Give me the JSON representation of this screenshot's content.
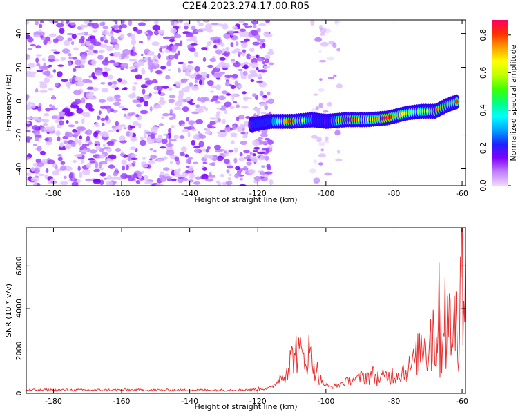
{
  "page_title": "C2E4.2023.274.17.00.R05",
  "chart_data": [
    {
      "type": "heatmap",
      "xlabel": "Height of straight line (km)",
      "ylabel": "Frequency (Hz)",
      "xlim": [
        -188,
        -59
      ],
      "ylim": [
        -50,
        48
      ],
      "x_ticks": [
        -180,
        -160,
        -140,
        -120,
        -100,
        -80,
        -60
      ],
      "y_ticks": [
        -40,
        -20,
        0,
        20,
        40
      ],
      "colorbar": {
        "label": "Normalized spectral amplitude",
        "range": [
          0,
          0.88
        ],
        "ticks": [
          "0.0",
          "0.2",
          "0.4",
          "0.6",
          "0.8"
        ],
        "colormap": [
          "#f0d8ff",
          "#c080ff",
          "#8000ff",
          "#2020ff",
          "#00a0ff",
          "#00ffff",
          "#00ff80",
          "#40ff00",
          "#c0ff00",
          "#ffff00",
          "#ffa000",
          "#ff3000",
          "#ff0060"
        ]
      },
      "regions": [
        {
          "name": "noise",
          "x_range": [
            -188,
            -116
          ],
          "y_range": [
            -50,
            48
          ],
          "amplitude": 0.05
        },
        {
          "name": "noise-column",
          "x_range": [
            -104,
            -96
          ],
          "y_range": [
            -50,
            48
          ],
          "amplitude": 0.03
        }
      ],
      "ridge": {
        "points": [
          {
            "x": -122,
            "y": -14,
            "amp": 0.3
          },
          {
            "x": -116,
            "y": -12,
            "amp": 0.4
          },
          {
            "x": -110,
            "y": -12,
            "amp": 0.85
          },
          {
            "x": -104,
            "y": -11,
            "amp": 0.45
          },
          {
            "x": -100,
            "y": -12,
            "amp": 0.3
          },
          {
            "x": -94,
            "y": -11,
            "amp": 0.85
          },
          {
            "x": -88,
            "y": -11,
            "amp": 0.6
          },
          {
            "x": -82,
            "y": -10,
            "amp": 0.85
          },
          {
            "x": -76,
            "y": -7,
            "amp": 0.6
          },
          {
            "x": -72,
            "y": -6,
            "amp": 0.55
          },
          {
            "x": -68,
            "y": -6,
            "amp": 0.8
          },
          {
            "x": -64,
            "y": -2,
            "amp": 0.7
          },
          {
            "x": -61,
            "y": 0,
            "amp": 0.8
          }
        ],
        "width_hz": 5
      }
    },
    {
      "type": "line",
      "xlabel": "Height of straight line (km)",
      "ylabel": "SNR (10 * v/v)",
      "xlim": [
        -188,
        -59
      ],
      "ylim": [
        0,
        7800
      ],
      "x_ticks": [
        -180,
        -160,
        -140,
        -120,
        -100,
        -80,
        -60
      ],
      "y_ticks": [
        0,
        2000,
        4000,
        6000
      ],
      "line_color": "#e83030",
      "series": [
        {
          "x": [
            -188,
            -180,
            -170,
            -160,
            -150,
            -140,
            -130,
            -122,
            -116,
            -113,
            -111,
            -109,
            -107,
            -105,
            -103,
            -101,
            -99,
            -97,
            -94,
            -92,
            -90,
            -88,
            -86,
            -84,
            -82,
            -80,
            -78,
            -76,
            -74,
            -72,
            -70,
            -68,
            -67,
            -66,
            -65,
            -64,
            -63,
            -62,
            -61,
            -60,
            -59
          ],
          "y": [
            150,
            160,
            150,
            160,
            150,
            150,
            150,
            180,
            250,
            800,
            1300,
            2000,
            1700,
            1900,
            1200,
            500,
            300,
            350,
            550,
            650,
            700,
            800,
            850,
            700,
            800,
            900,
            1000,
            1100,
            1500,
            2200,
            2600,
            3000,
            3600,
            2800,
            4700,
            2400,
            4000,
            2600,
            5500,
            6600,
            4000
          ]
        }
      ]
    }
  ]
}
